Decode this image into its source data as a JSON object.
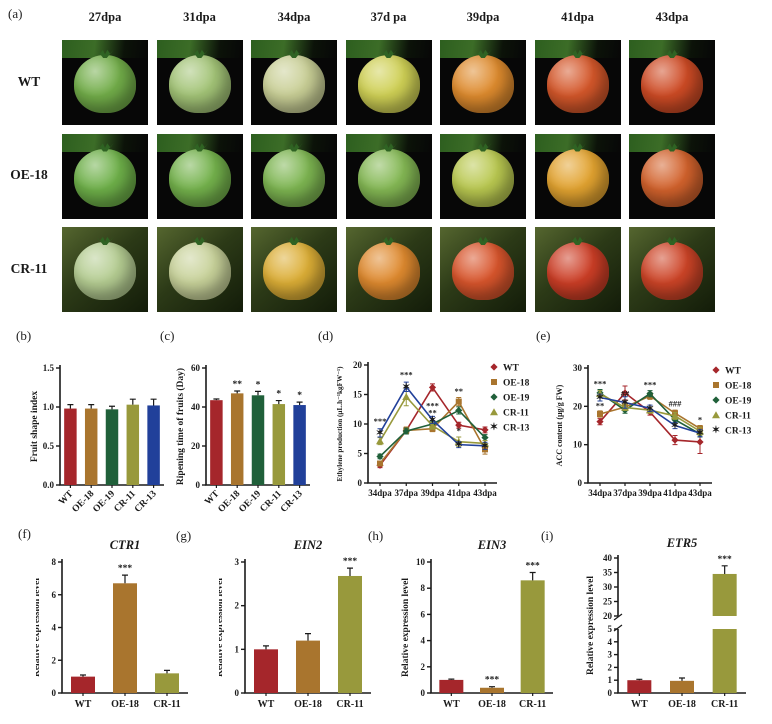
{
  "group_colors": {
    "WT": "#a5262b",
    "OE-18": "#a9752e",
    "OE-19": "#20603a",
    "CR-11": "#98993c",
    "CR-13": "#21409a"
  },
  "panel_a": {
    "label": "(a)",
    "col_headers": [
      "27dpa",
      "31dpa",
      "34dpa",
      "37d pa",
      "39dpa",
      "41dpa",
      "43dpa"
    ],
    "rows": [
      {
        "label": "WT",
        "setting": "studio",
        "fruit_colors": [
          "#72ad49",
          "#a3c477",
          "#c9cf96",
          "#cfd055",
          "#de8b2e",
          "#d4572a",
          "#ce4b25"
        ]
      },
      {
        "label": "OE-18",
        "setting": "studio",
        "fruit_colors": [
          "#6eb049",
          "#74b24c",
          "#7db551",
          "#84b854",
          "#b9c850",
          "#e2a330",
          "#d2622c"
        ]
      },
      {
        "label": "CR-11",
        "setting": "field",
        "fruit_colors": [
          "#b5cd92",
          "#c8d29a",
          "#dcae36",
          "#df8a2f",
          "#d8552c",
          "#cc3e26",
          "#cd4427"
        ]
      }
    ]
  },
  "panel_letters": {
    "b": "(b)",
    "c": "(c)",
    "d": "(d)",
    "e": "(e)",
    "f": "(f)",
    "g": "(g)",
    "h": "(h)",
    "i": "(i)"
  },
  "chart_data": {
    "b": {
      "type": "bar",
      "ylabel": "Fruit shape index",
      "ylim": [
        0,
        1.5
      ],
      "yticks": [
        "0.0",
        "0.5",
        "1.0",
        "1.5"
      ],
      "categories": [
        "WT",
        "OE-18",
        "OE-19",
        "CR-11",
        "CR-13"
      ],
      "values": [
        0.98,
        0.98,
        0.97,
        1.03,
        1.02
      ],
      "errors": [
        0.05,
        0.05,
        0.04,
        0.07,
        0.08
      ],
      "sig": [
        "",
        "",
        "",
        "",
        ""
      ]
    },
    "c": {
      "type": "bar",
      "ylabel": "Ripening time of fruits (Day)",
      "ylim": [
        0,
        60
      ],
      "yticks": [
        "0",
        "20",
        "40",
        "60"
      ],
      "categories": [
        "WT",
        "OE-18",
        "OE-19",
        "CR-11",
        "CR-13"
      ],
      "values": [
        43.5,
        47,
        46,
        41.5,
        41
      ],
      "errors": [
        0.6,
        1.2,
        2,
        1.8,
        1.5
      ],
      "sig": [
        "",
        "**",
        "*",
        "*",
        "*"
      ]
    },
    "d": {
      "type": "line",
      "ylabel": "Ethylene production (μL.h⁻¹kgFW⁻¹)",
      "ylim": [
        0,
        20
      ],
      "yticks": [
        "0",
        "5",
        "10",
        "15",
        "20"
      ],
      "x": [
        "34dpa",
        "37dpa",
        "39dpa",
        "41dpa",
        "43dpa"
      ],
      "legend_position": "right",
      "series": [
        {
          "name": "WT",
          "marker": "diamond",
          "values": [
            3,
            8.9,
            16.2,
            9.8,
            9
          ],
          "errors": [
            0.4,
            0.5,
            0.6,
            0.5,
            0.5
          ]
        },
        {
          "name": "OE-18",
          "marker": "square",
          "values": [
            3.3,
            8.9,
            9.2,
            13.8,
            5.7
          ],
          "errors": [
            0.4,
            0.6,
            0.5,
            0.7,
            0.8
          ]
        },
        {
          "name": "OE-19",
          "marker": "diamond",
          "values": [
            4.5,
            8.8,
            10,
            12.3,
            7.7
          ],
          "errors": [
            0.4,
            0.5,
            0.5,
            0.6,
            0.5
          ]
        },
        {
          "name": "CR-11",
          "marker": "triangle",
          "values": [
            7.1,
            14.6,
            9.7,
            7,
            6.7
          ],
          "errors": [
            0.6,
            1.5,
            0.6,
            0.8,
            0.5
          ]
        },
        {
          "name": "CR-13",
          "marker": "star",
          "values": [
            8.5,
            16.3,
            10.7,
            6.5,
            6.3
          ],
          "errors": [
            0.7,
            0.8,
            0.6,
            0.5,
            0.6
          ]
        }
      ],
      "annotations": [
        {
          "xi": 0,
          "y": 10,
          "text": "***"
        },
        {
          "xi": 1,
          "y": 17.9,
          "text": "***"
        },
        {
          "xi": 2,
          "y": 12.6,
          "text": "***"
        },
        {
          "xi": 2,
          "y": 11.4,
          "text": "**"
        },
        {
          "xi": 3,
          "y": 15.1,
          "text": "**"
        },
        {
          "xi": 3,
          "y": 8.4,
          "text": "*"
        }
      ]
    },
    "e": {
      "type": "line",
      "ylabel": "ACC content (μg/g FW)",
      "ylim": [
        0,
        30
      ],
      "yticks": [
        "0",
        "10",
        "20",
        "30"
      ],
      "x": [
        "34dpa",
        "37dpa",
        "39dpa",
        "41dpa",
        "43dpa"
      ],
      "legend_position": "right",
      "series": [
        {
          "name": "WT",
          "marker": "diamond",
          "values": [
            16,
            23.5,
            18.5,
            11.2,
            10.7
          ],
          "errors": [
            0.8,
            1.8,
            0.8,
            1.2,
            3
          ]
        },
        {
          "name": "OE-18",
          "marker": "square",
          "values": [
            18,
            19.8,
            22.7,
            18.2,
            14.2
          ],
          "errors": [
            0.8,
            0.8,
            0.9,
            0.8,
            0.8
          ]
        },
        {
          "name": "OE-19",
          "marker": "diamond",
          "values": [
            23.5,
            19,
            23.3,
            16.5,
            12.8
          ],
          "errors": [
            0.9,
            0.8,
            0.8,
            0.8,
            0.8
          ]
        },
        {
          "name": "CR-11",
          "marker": "triangle",
          "values": [
            23.3,
            19.7,
            19,
            17.5,
            13.5
          ],
          "errors": [
            0.8,
            0.8,
            0.8,
            0.9,
            1
          ]
        },
        {
          "name": "CR-13",
          "marker": "star",
          "values": [
            22.3,
            21,
            19.5,
            15,
            13
          ],
          "errors": [
            0.9,
            1.5,
            0.8,
            0.8,
            0.9
          ]
        }
      ],
      "annotations": [
        {
          "xi": 0,
          "y": 25.2,
          "text": "***"
        },
        {
          "xi": 0,
          "y": 19.4,
          "text": "**"
        },
        {
          "xi": 1,
          "y": 22.6,
          "text": "##"
        },
        {
          "xi": 2,
          "y": 24.9,
          "text": "***"
        },
        {
          "xi": 3,
          "y": 19.9,
          "text": "###"
        },
        {
          "xi": 4,
          "y": 15.8,
          "text": "*"
        }
      ]
    },
    "f": {
      "type": "bar",
      "title": "CTR1",
      "ylabel": "Relative expression level",
      "ylim": [
        0,
        8
      ],
      "yticks": [
        "0",
        "2",
        "4",
        "6",
        "8"
      ],
      "categories": [
        "WT",
        "OE-18",
        "CR-11"
      ],
      "values": [
        1,
        6.7,
        1.2
      ],
      "errors": [
        0.1,
        0.5,
        0.18
      ],
      "sig": [
        "",
        "***",
        ""
      ]
    },
    "g": {
      "type": "bar",
      "title": "EIN2",
      "ylabel": "Relative expression level",
      "ylim": [
        0,
        3
      ],
      "yticks": [
        "0",
        "1",
        "2",
        "3"
      ],
      "categories": [
        "WT",
        "OE-18",
        "CR-11"
      ],
      "values": [
        1,
        1.2,
        2.68
      ],
      "errors": [
        0.08,
        0.16,
        0.18
      ],
      "sig": [
        "",
        "",
        "***"
      ]
    },
    "h": {
      "type": "bar",
      "title": "EIN3",
      "ylabel": "Relative expression level",
      "ylim": [
        0,
        10
      ],
      "yticks": [
        "0",
        "2",
        "4",
        "6",
        "8",
        "10"
      ],
      "categories": [
        "WT",
        "OE-18",
        "CR-11"
      ],
      "values": [
        1,
        0.4,
        8.6
      ],
      "errors": [
        0.06,
        0.08,
        0.6
      ],
      "sig": [
        "",
        "***",
        "***"
      ]
    },
    "i": {
      "type": "bar-broken",
      "title": "ETR5",
      "ylabel": "Relative expression level",
      "upper": {
        "lim": [
          20,
          40
        ],
        "ticks": [
          "20",
          "25",
          "30",
          "35",
          "40"
        ]
      },
      "lower": {
        "lim": [
          0,
          5
        ],
        "ticks": [
          "0",
          "1",
          "2",
          "3",
          "4",
          "5"
        ]
      },
      "categories": [
        "WT",
        "OE-18",
        "CR-11"
      ],
      "values": [
        1,
        0.95,
        34.5
      ],
      "errors": [
        0.07,
        0.22,
        2.8
      ],
      "sig": [
        "",
        "",
        "***"
      ]
    }
  }
}
